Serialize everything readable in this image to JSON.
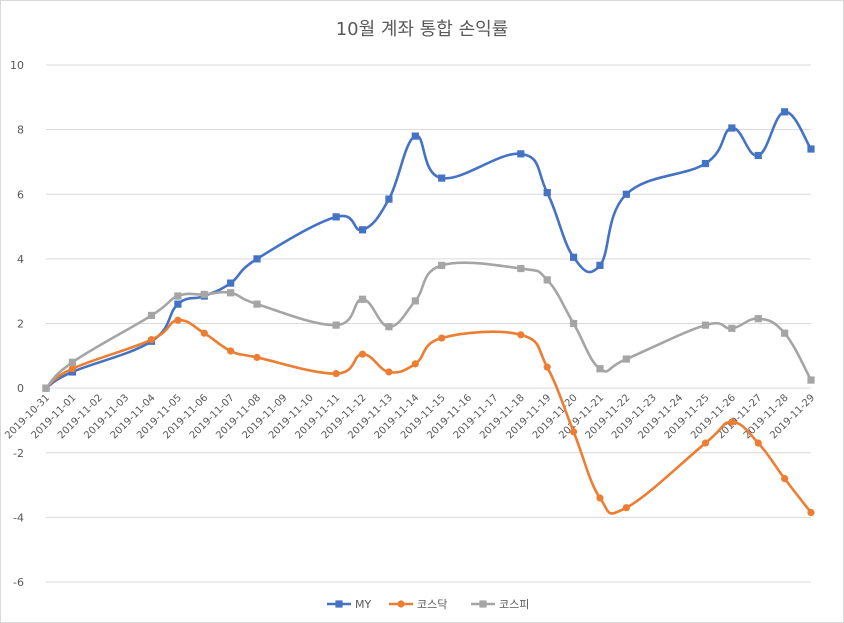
{
  "chart_data": {
    "type": "line",
    "title": "10월 계좌 통합 손익률",
    "xlabel": "",
    "ylabel": "",
    "ylim": [
      -6,
      10
    ],
    "yticks": [
      -6,
      -4,
      -2,
      0,
      2,
      4,
      6,
      8,
      10
    ],
    "grid": true,
    "smooth": true,
    "legend_position": "bottom",
    "x": [
      "2019-10-31",
      "2019-11-01",
      "2019-11-02",
      "2019-11-03",
      "2019-11-04",
      "2019-11-05",
      "2019-11-06",
      "2019-11-07",
      "2019-11-08",
      "2019-11-09",
      "2019-11-10",
      "2019-11-11",
      "2019-11-12",
      "2019-11-13",
      "2019-11-14",
      "2019-11-15",
      "2019-11-16",
      "2019-11-17",
      "2019-11-18",
      "2019-11-19",
      "2019-11-20",
      "2019-11-21",
      "2019-11-22",
      "2019-11-23",
      "2019-11-24",
      "2019-11-25",
      "2019-11-26",
      "2019-11-27",
      "2019-11-28",
      "2019-11-29"
    ],
    "series": [
      {
        "name": "MY",
        "color": "#4472c4",
        "marker": "square",
        "points": [
          [
            "2019-10-31",
            0.0
          ],
          [
            "2019-11-01",
            0.5
          ],
          [
            "2019-11-04",
            1.45
          ],
          [
            "2019-11-05",
            2.6
          ],
          [
            "2019-11-06",
            2.85
          ],
          [
            "2019-11-07",
            3.25
          ],
          [
            "2019-11-08",
            4.0
          ],
          [
            "2019-11-11",
            5.3
          ],
          [
            "2019-11-12",
            4.9
          ],
          [
            "2019-11-13",
            5.85
          ],
          [
            "2019-11-14",
            7.8
          ],
          [
            "2019-11-15",
            6.5
          ],
          [
            "2019-11-18",
            7.25
          ],
          [
            "2019-11-19",
            6.05
          ],
          [
            "2019-11-20",
            4.05
          ],
          [
            "2019-11-21",
            3.8
          ],
          [
            "2019-11-22",
            6.0
          ],
          [
            "2019-11-25",
            6.95
          ],
          [
            "2019-11-26",
            8.05
          ],
          [
            "2019-11-27",
            7.2
          ],
          [
            "2019-11-28",
            8.55
          ],
          [
            "2019-11-29",
            7.4
          ]
        ]
      },
      {
        "name": "코스닥",
        "color": "#ed7d31",
        "marker": "circle",
        "points": [
          [
            "2019-10-31",
            0.0
          ],
          [
            "2019-11-01",
            0.6
          ],
          [
            "2019-11-04",
            1.5
          ],
          [
            "2019-11-05",
            2.1
          ],
          [
            "2019-11-06",
            1.7
          ],
          [
            "2019-11-07",
            1.15
          ],
          [
            "2019-11-08",
            0.95
          ],
          [
            "2019-11-11",
            0.45
          ],
          [
            "2019-11-12",
            1.05
          ],
          [
            "2019-11-13",
            0.5
          ],
          [
            "2019-11-14",
            0.75
          ],
          [
            "2019-11-15",
            1.55
          ],
          [
            "2019-11-18",
            1.65
          ],
          [
            "2019-11-19",
            0.65
          ],
          [
            "2019-11-20",
            -1.35
          ],
          [
            "2019-11-21",
            -3.4
          ],
          [
            "2019-11-22",
            -3.7
          ],
          [
            "2019-11-25",
            -1.7
          ],
          [
            "2019-11-26",
            -1.05
          ],
          [
            "2019-11-27",
            -1.7
          ],
          [
            "2019-11-28",
            -2.8
          ],
          [
            "2019-11-29",
            -3.85
          ]
        ]
      },
      {
        "name": "코스피",
        "color": "#a5a5a5",
        "marker": "square",
        "points": [
          [
            "2019-10-31",
            0.0
          ],
          [
            "2019-11-01",
            0.8
          ],
          [
            "2019-11-04",
            2.25
          ],
          [
            "2019-11-05",
            2.85
          ],
          [
            "2019-11-06",
            2.9
          ],
          [
            "2019-11-07",
            2.95
          ],
          [
            "2019-11-08",
            2.6
          ],
          [
            "2019-11-11",
            1.95
          ],
          [
            "2019-11-12",
            2.75
          ],
          [
            "2019-11-13",
            1.9
          ],
          [
            "2019-11-14",
            2.7
          ],
          [
            "2019-11-15",
            3.8
          ],
          [
            "2019-11-18",
            3.7
          ],
          [
            "2019-11-19",
            3.35
          ],
          [
            "2019-11-20",
            2.0
          ],
          [
            "2019-11-21",
            0.6
          ],
          [
            "2019-11-22",
            0.9
          ],
          [
            "2019-11-25",
            1.95
          ],
          [
            "2019-11-26",
            1.85
          ],
          [
            "2019-11-27",
            2.15
          ],
          [
            "2019-11-28",
            1.7
          ],
          [
            "2019-11-29",
            0.25
          ]
        ]
      }
    ]
  }
}
